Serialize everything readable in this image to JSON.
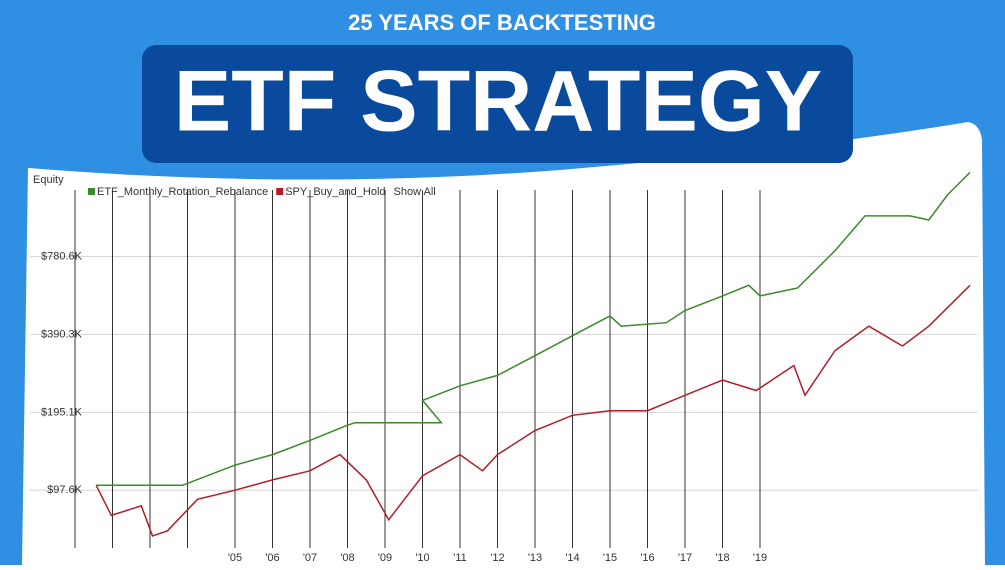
{
  "header": {
    "kicker": "25 YEARS OF BACKTESTING",
    "title": "ETF STRATEGY"
  },
  "chart_data": {
    "type": "line",
    "y_label": "Equity",
    "show_all_label": "Show All",
    "log_scale": true,
    "grid": true,
    "legend": "top-left",
    "xlim": [
      2001,
      2025
    ],
    "ylim": [
      52000,
      1700000
    ],
    "xticks": [
      {
        "value": 2005,
        "label": "'05"
      },
      {
        "value": 2006,
        "label": "'06"
      },
      {
        "value": 2007,
        "label": "'07"
      },
      {
        "value": 2008,
        "label": "'08"
      },
      {
        "value": 2009,
        "label": "'09"
      },
      {
        "value": 2010,
        "label": "'10"
      },
      {
        "value": 2011,
        "label": "'11"
      },
      {
        "value": 2012,
        "label": "'12"
      },
      {
        "value": 2013,
        "label": "'13"
      },
      {
        "value": 2014,
        "label": "'14"
      },
      {
        "value": 2015,
        "label": "'15"
      },
      {
        "value": 2016,
        "label": "'16"
      },
      {
        "value": 2017,
        "label": "'17"
      },
      {
        "value": 2018,
        "label": "'18"
      },
      {
        "value": 2019,
        "label": "'19"
      }
    ],
    "yticks": [
      {
        "value": 97600,
        "label": "$97.6K"
      },
      {
        "value": 195100,
        "label": "$195.1K"
      },
      {
        "value": 390300,
        "label": "$390.3K"
      },
      {
        "value": 780600,
        "label": "$780.6K"
      }
    ],
    "series": [
      {
        "name": "ETF_Monthly_Rotation_Rebalance",
        "color": "#3b8a2c",
        "x": [
          2001.3,
          2003.6,
          2005,
          2006,
          2007,
          2008,
          2008.2,
          2010.5,
          2010,
          2011,
          2012,
          2013,
          2014,
          2015,
          2015.3,
          2016.5,
          2017,
          2018,
          2018.7,
          2019,
          2020,
          2021,
          2021.8,
          2023,
          2023.5,
          2024,
          2024.6
        ],
        "values": [
          102000,
          102000,
          122000,
          134000,
          152000,
          174000,
          178000,
          178000,
          217000,
          247000,
          271000,
          323000,
          386000,
          460000,
          420000,
          433000,
          483000,
          550000,
          604000,
          550000,
          590000,
          822000,
          1120000,
          1120000,
          1080000,
          1350000,
          1650000
        ]
      },
      {
        "name": "SPY_Buy_and_Hold",
        "color": "#b01e2a",
        "x": [
          2001.3,
          2001.7,
          2002.5,
          2002.8,
          2003.2,
          2004,
          2005,
          2006,
          2007,
          2007.8,
          2008.5,
          2009.1,
          2010,
          2011,
          2011.6,
          2012,
          2013,
          2014,
          2015,
          2016,
          2017,
          2018,
          2018.9,
          2019.9,
          2020.2,
          2021,
          2021.9,
          2022.8,
          2023.5,
          2024.6
        ],
        "values": [
          102000,
          78000,
          85000,
          65000,
          68000,
          90000,
          97600,
          107000,
          116000,
          134000,
          107000,
          75000,
          111000,
          134000,
          116000,
          134000,
          166000,
          190000,
          198000,
          198000,
          227000,
          260000,
          237000,
          296000,
          227000,
          338000,
          420000,
          352000,
          420000,
          604000
        ]
      }
    ]
  }
}
